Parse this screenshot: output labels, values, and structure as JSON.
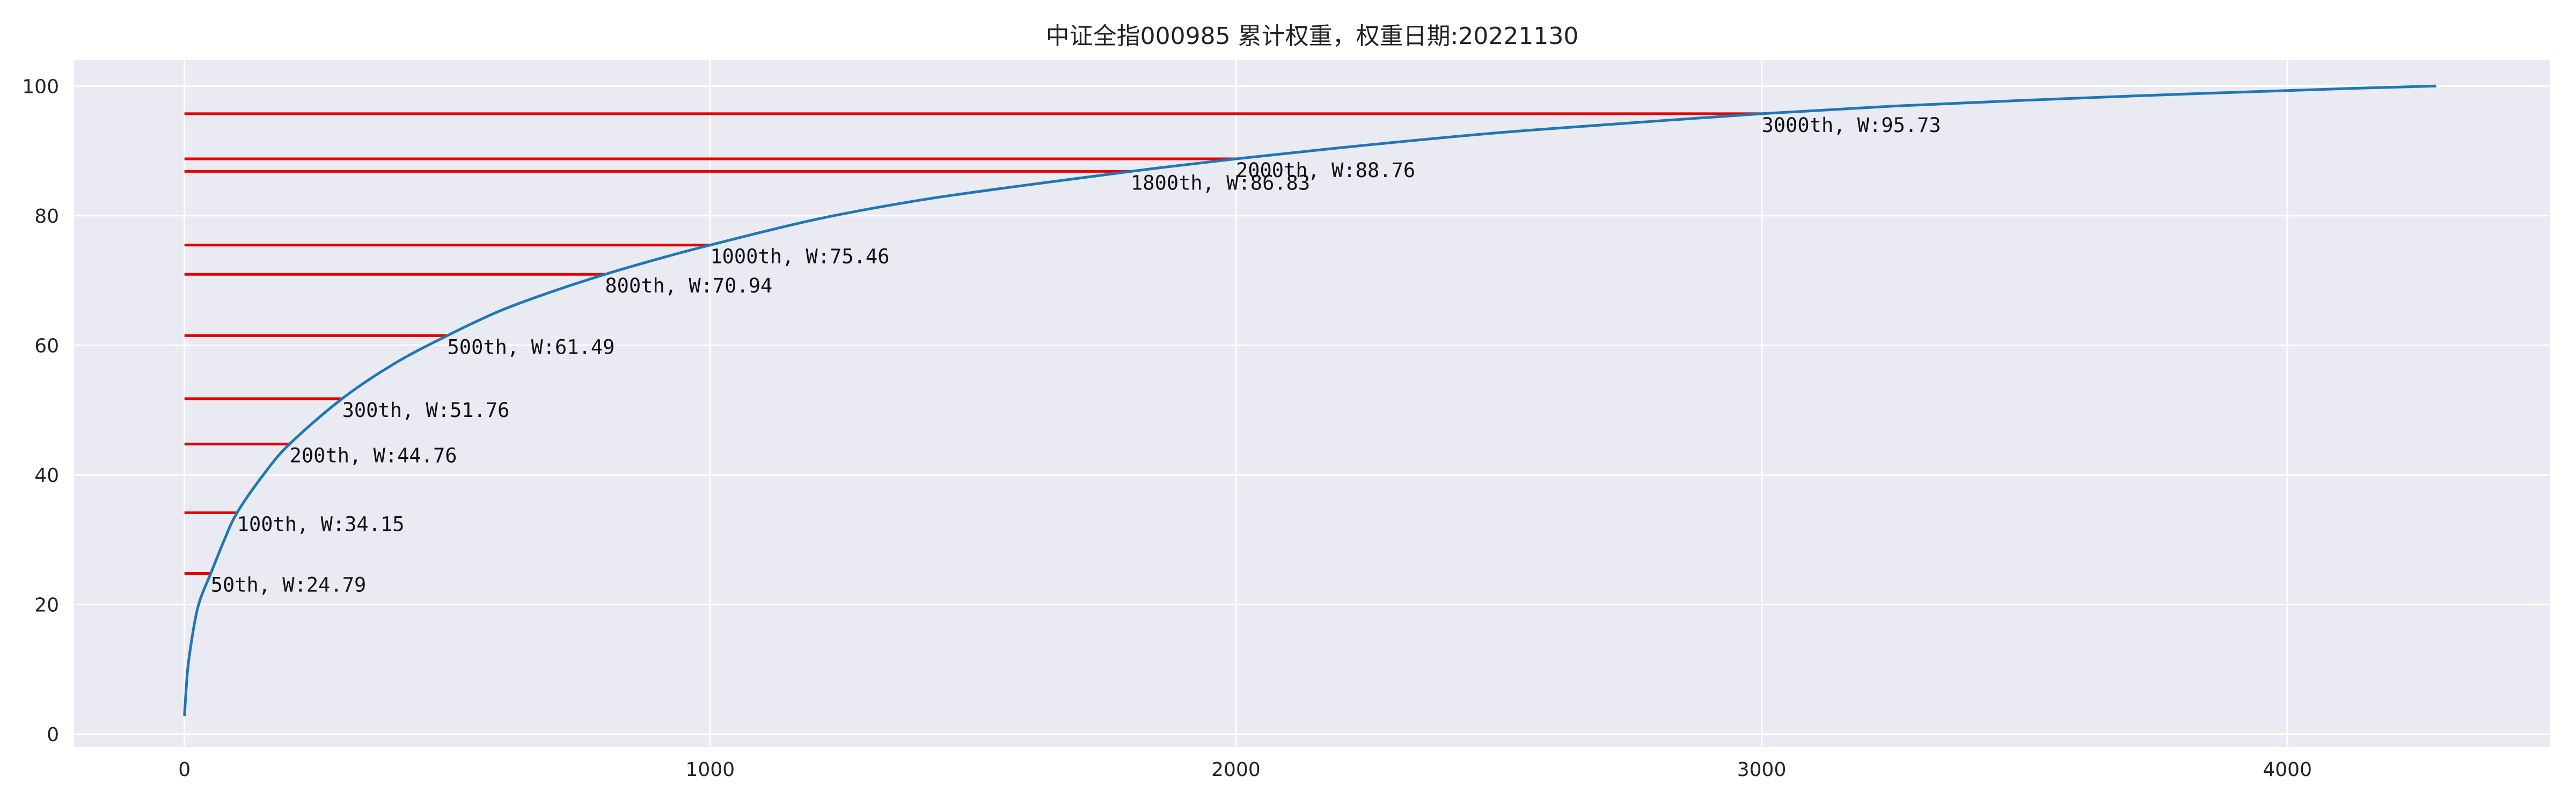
{
  "chart_data": {
    "type": "line",
    "title": "中证全指000985 累计权重，权重日期:20221130",
    "xlabel": "",
    "ylabel": "",
    "xlim": [
      -210,
      4500
    ],
    "ylim": [
      -2,
      104
    ],
    "x_ticks": [
      0,
      1000,
      2000,
      3000,
      4000
    ],
    "x_tick_labels": [
      "0",
      "1000",
      "2000",
      "3000",
      "4000"
    ],
    "y_ticks": [
      0,
      20,
      40,
      60,
      80,
      100
    ],
    "y_tick_labels": [
      "0",
      "20",
      "40",
      "60",
      "80",
      "100"
    ],
    "grid": true,
    "background_color": "#EAEAF2",
    "series": [
      {
        "color": "#1F77B4",
        "points": [
          [
            0,
            2.8
          ],
          [
            5,
            9.0
          ],
          [
            10,
            12.5
          ],
          [
            20,
            17.5
          ],
          [
            30,
            20.8
          ],
          [
            50,
            24.79
          ],
          [
            75,
            29.8
          ],
          [
            100,
            34.15
          ],
          [
            150,
            40.0
          ],
          [
            200,
            44.76
          ],
          [
            300,
            51.76
          ],
          [
            400,
            57.2
          ],
          [
            500,
            61.49
          ],
          [
            600,
            65.3
          ],
          [
            700,
            68.3
          ],
          [
            800,
            70.94
          ],
          [
            900,
            73.3
          ],
          [
            1000,
            75.46
          ],
          [
            1200,
            79.4
          ],
          [
            1400,
            82.4
          ],
          [
            1600,
            84.7
          ],
          [
            1800,
            86.83
          ],
          [
            2000,
            88.76
          ],
          [
            2250,
            90.9
          ],
          [
            2500,
            92.8
          ],
          [
            2750,
            94.3
          ],
          [
            3000,
            95.73
          ],
          [
            3250,
            96.9
          ],
          [
            3500,
            97.8
          ],
          [
            3750,
            98.6
          ],
          [
            4000,
            99.3
          ],
          [
            4150,
            99.7
          ],
          [
            4283,
            100.0
          ]
        ]
      }
    ],
    "reference_lines": [
      {
        "x": 50,
        "y": 24.79,
        "label": "50th, W:24.79"
      },
      {
        "x": 100,
        "y": 34.15,
        "label": "100th, W:34.15"
      },
      {
        "x": 200,
        "y": 44.76,
        "label": "200th, W:44.76"
      },
      {
        "x": 300,
        "y": 51.76,
        "label": "300th, W:51.76"
      },
      {
        "x": 500,
        "y": 61.49,
        "label": "500th, W:61.49"
      },
      {
        "x": 800,
        "y": 70.94,
        "label": "800th, W:70.94"
      },
      {
        "x": 1000,
        "y": 75.46,
        "label": "1000th, W:75.46"
      },
      {
        "x": 1800,
        "y": 86.83,
        "label": "1800th, W:86.83"
      },
      {
        "x": 2000,
        "y": 88.76,
        "label": "2000th, W:88.76"
      },
      {
        "x": 3000,
        "y": 95.73,
        "label": "3000th, W:95.73"
      }
    ],
    "reference_color": "#E50000"
  }
}
